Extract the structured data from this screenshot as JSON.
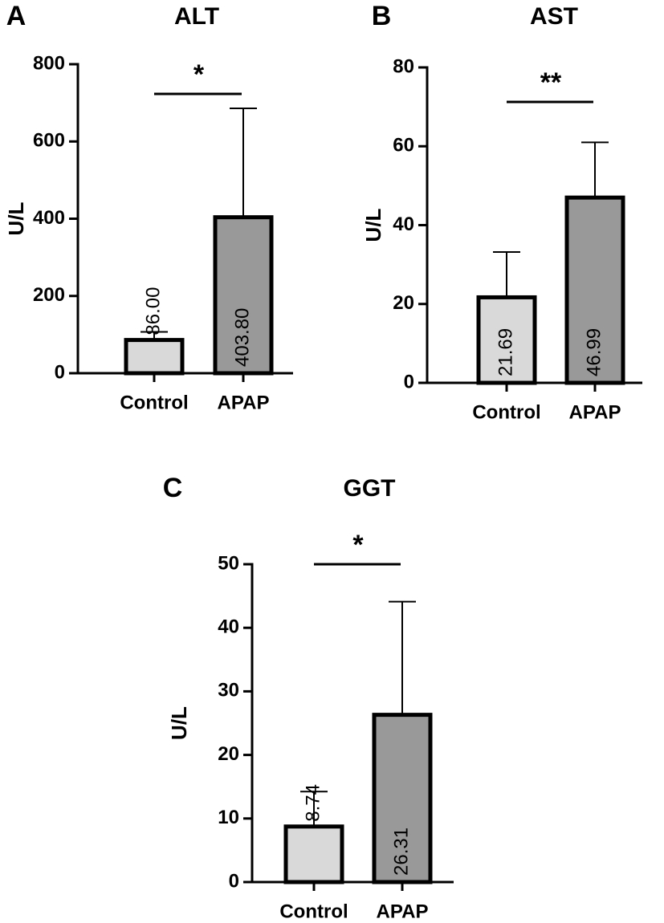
{
  "chart_data": [
    {
      "type": "bar",
      "panel": "A",
      "title": "ALT",
      "ylabel": "U/L",
      "categories": [
        "Control",
        "APAP"
      ],
      "values": [
        86.0,
        403.8
      ],
      "value_labels": [
        "86.00",
        "403.80"
      ],
      "errors": [
        21,
        282
      ],
      "colors": [
        "#d9d9d9",
        "#999999"
      ],
      "ylim": [
        0,
        800
      ],
      "yticks": [
        0,
        200,
        400,
        600,
        800
      ],
      "significance": "*"
    },
    {
      "type": "bar",
      "panel": "B",
      "title": "AST",
      "ylabel": "U/L",
      "categories": [
        "Control",
        "APAP"
      ],
      "values": [
        21.69,
        46.99
      ],
      "value_labels": [
        "21.69",
        "46.99"
      ],
      "errors": [
        11.5,
        14
      ],
      "colors": [
        "#d9d9d9",
        "#999999"
      ],
      "ylim": [
        0,
        80
      ],
      "yticks": [
        0,
        20,
        40,
        60,
        80
      ],
      "significance": "**"
    },
    {
      "type": "bar",
      "panel": "C",
      "title": "GGT",
      "ylabel": "U/L",
      "categories": [
        "Control",
        "APAP"
      ],
      "values": [
        8.74,
        26.31
      ],
      "value_labels": [
        "8.74",
        "26.31"
      ],
      "errors": [
        5.5,
        17.8
      ],
      "colors": [
        "#d9d9d9",
        "#999999"
      ],
      "ylim": [
        0,
        50
      ],
      "yticks": [
        0,
        10,
        20,
        30,
        40,
        50
      ],
      "significance": "*"
    }
  ]
}
